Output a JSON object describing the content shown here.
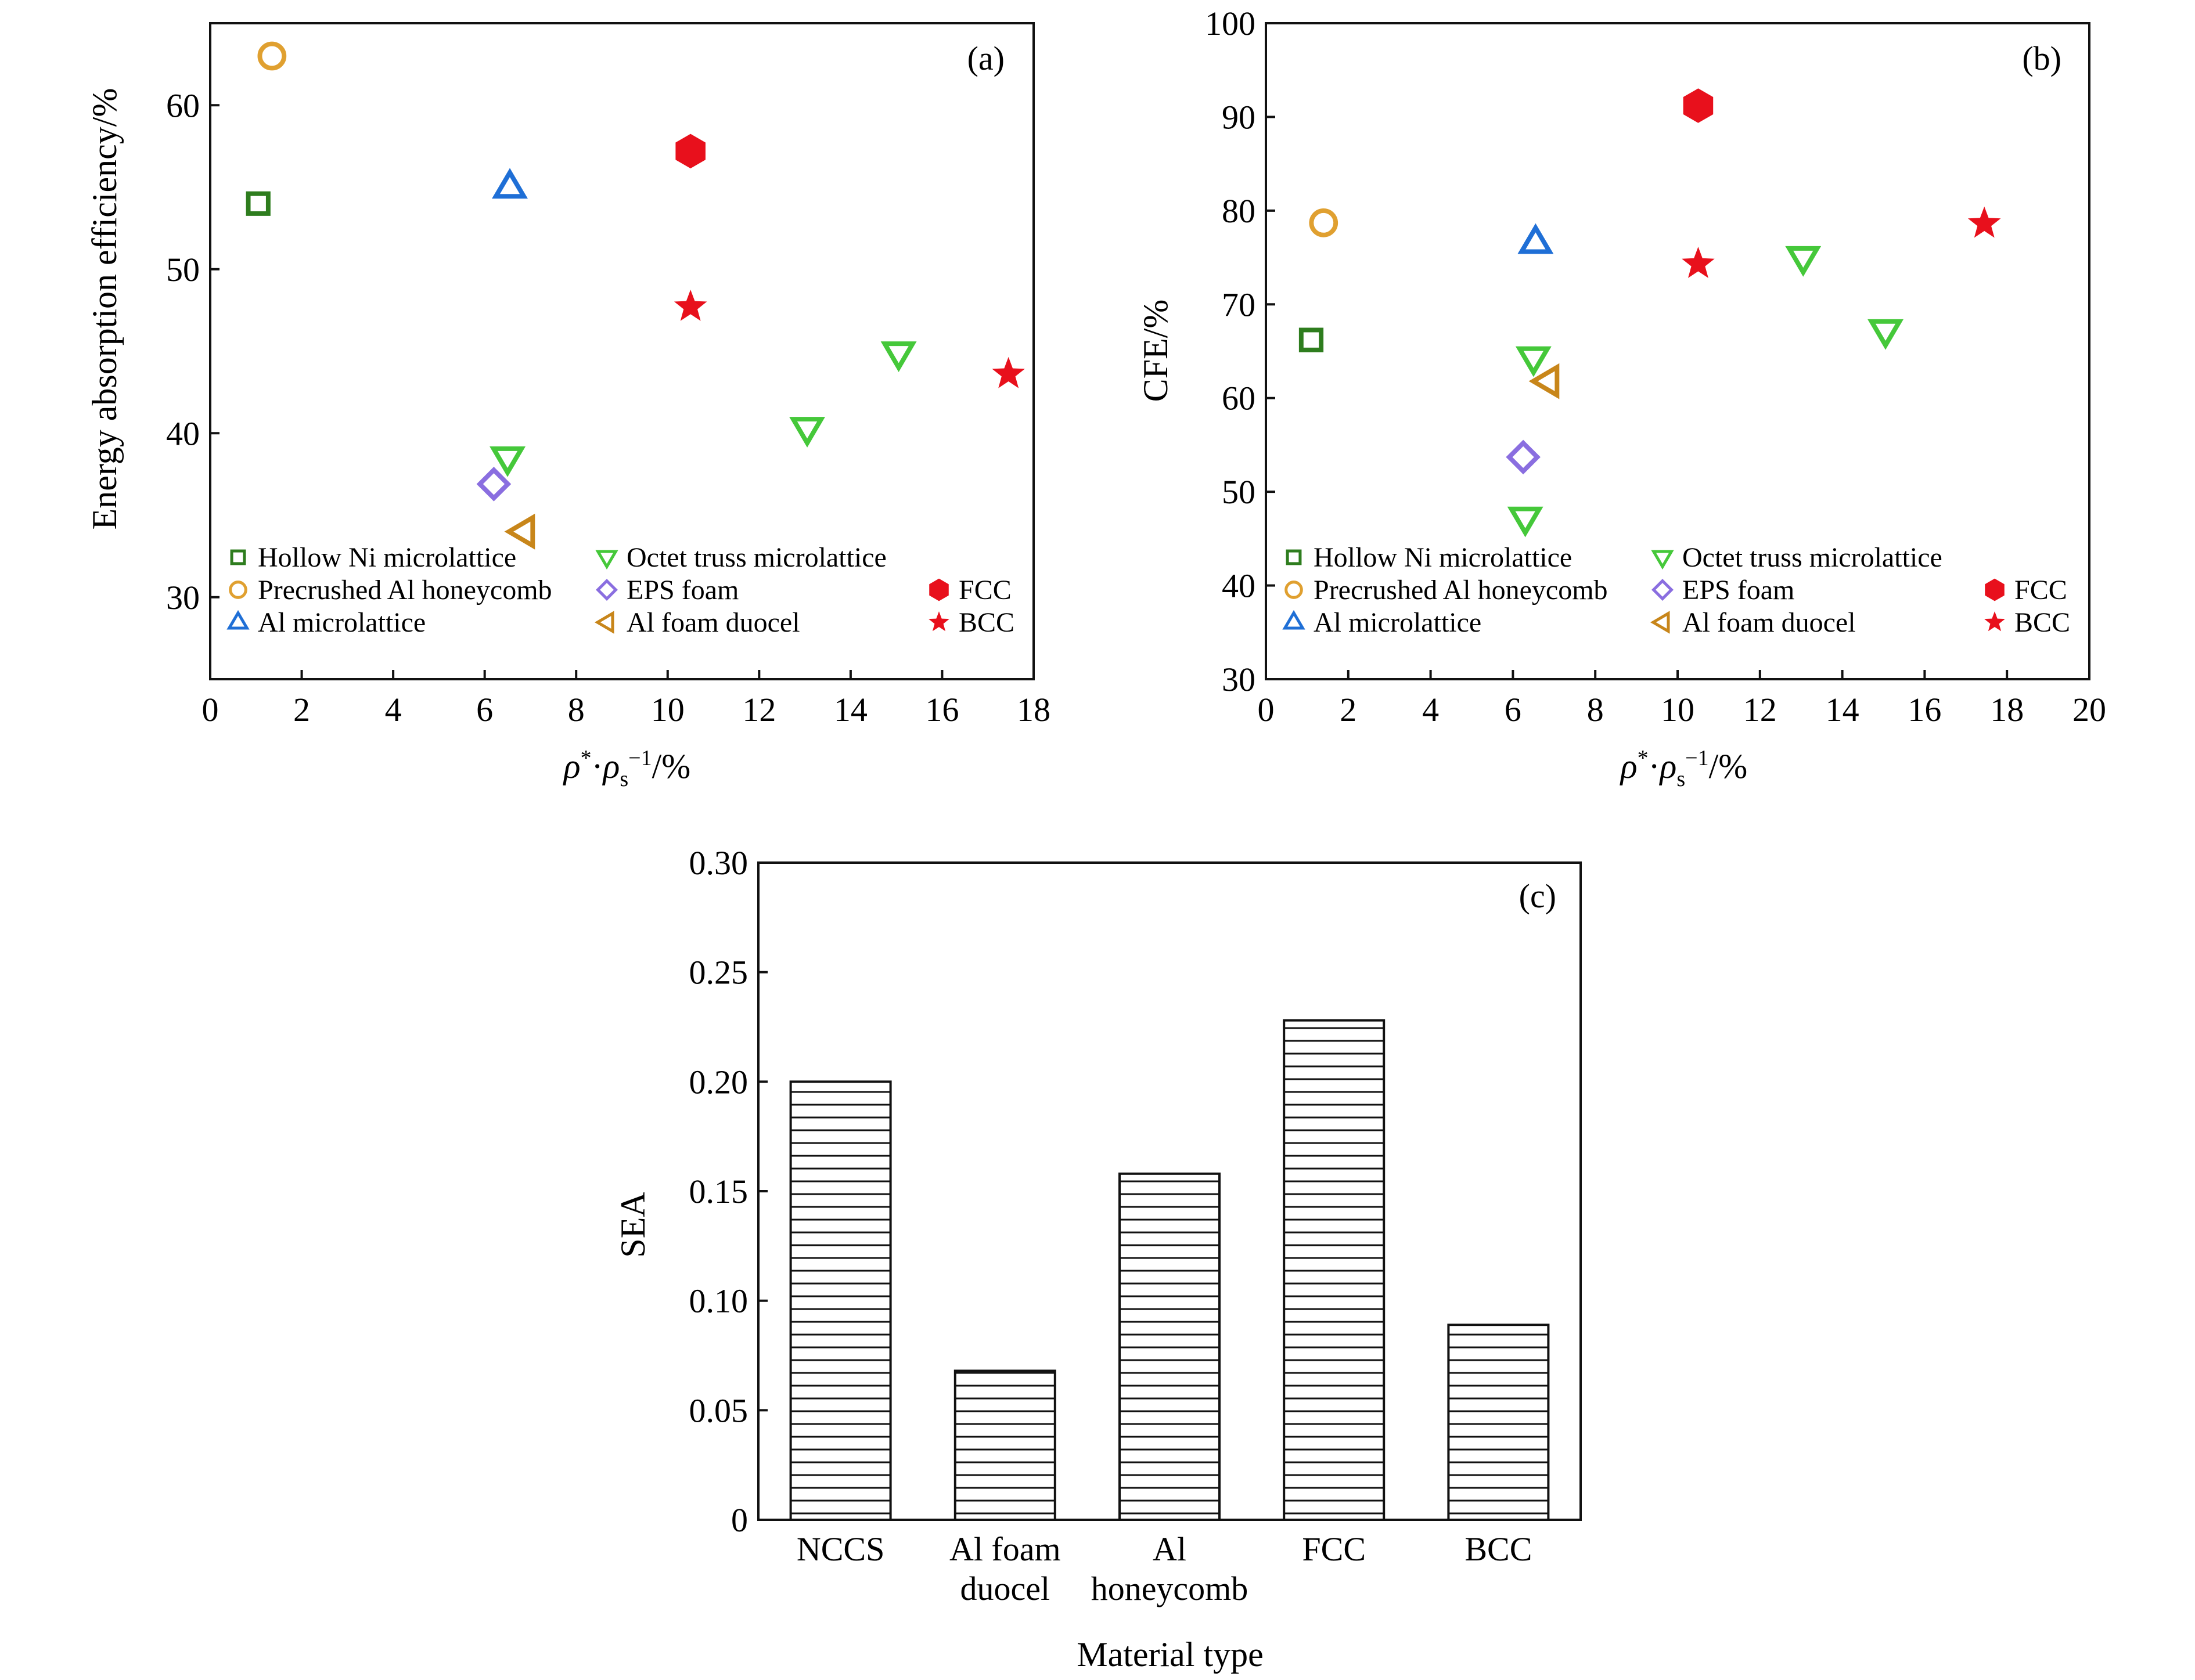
{
  "colors": {
    "hollow_ni": "#2e7d1e",
    "precrushed_al": "#e0a030",
    "al_microlattice": "#1f6fd6",
    "octet": "#45c83a",
    "eps": "#8a6ee0",
    "al_foam": "#c8861a",
    "fcc": "#e8101c",
    "bcc": "#e8101c"
  },
  "chart_data": [
    {
      "panel": "(a)",
      "type": "scatter",
      "xlabel": "ρ*·ρs−1/%",
      "ylabel": "Energy absorption efficiency/%",
      "xlim": [
        0,
        18
      ],
      "ylim": [
        25,
        65
      ],
      "xticks": [
        0,
        2,
        4,
        6,
        8,
        10,
        12,
        14,
        16,
        18
      ],
      "yticks": [
        30,
        40,
        50,
        60
      ],
      "legend": "bottom",
      "series": [
        {
          "name": "Hollow Ni microlattice",
          "marker": "square-open",
          "color_key": "hollow_ni",
          "points": [
            [
              1.05,
              54.0
            ]
          ]
        },
        {
          "name": "Precrushed Al honeycomb",
          "marker": "circle-open",
          "color_key": "precrushed_al",
          "points": [
            [
              1.35,
              63.0
            ]
          ]
        },
        {
          "name": "Al microlattice",
          "marker": "triangle-up-open",
          "color_key": "al_microlattice",
          "points": [
            [
              6.55,
              55.0
            ]
          ]
        },
        {
          "name": "Octet truss microlattice",
          "marker": "triangle-down-open",
          "color_key": "octet",
          "points": [
            [
              6.5,
              38.5
            ],
            [
              13.05,
              40.3
            ],
            [
              15.05,
              44.9
            ]
          ]
        },
        {
          "name": "EPS foam",
          "marker": "diamond-open",
          "color_key": "eps",
          "points": [
            [
              6.2,
              36.9
            ]
          ]
        },
        {
          "name": "Al foam duocel",
          "marker": "triangle-left-open",
          "color_key": "al_foam",
          "points": [
            [
              6.85,
              34.0
            ]
          ]
        },
        {
          "name": "FCC",
          "marker": "hexagon-filled",
          "color_key": "fcc",
          "points": [
            [
              10.5,
              57.2
            ]
          ]
        },
        {
          "name": "BCC",
          "marker": "star-filled",
          "color_key": "bcc",
          "points": [
            [
              10.5,
              47.7
            ],
            [
              17.45,
              43.6
            ]
          ]
        }
      ]
    },
    {
      "panel": "(b)",
      "type": "scatter",
      "xlabel": "ρ*·ρs−1/%",
      "ylabel": "CFE/%",
      "xlim": [
        0,
        20
      ],
      "ylim": [
        30,
        100
      ],
      "xticks": [
        0,
        2,
        4,
        6,
        8,
        10,
        12,
        14,
        16,
        18,
        20
      ],
      "yticks": [
        30,
        40,
        50,
        60,
        70,
        80,
        90,
        100
      ],
      "legend": "bottom",
      "series": [
        {
          "name": "Hollow Ni microlattice",
          "marker": "square-open",
          "color_key": "hollow_ni",
          "points": [
            [
              1.1,
              66.2
            ]
          ]
        },
        {
          "name": "Precrushed Al honeycomb",
          "marker": "circle-open",
          "color_key": "precrushed_al",
          "points": [
            [
              1.4,
              78.7
            ]
          ]
        },
        {
          "name": "Al microlattice",
          "marker": "triangle-up-open",
          "color_key": "al_microlattice",
          "points": [
            [
              6.55,
              76.6
            ]
          ]
        },
        {
          "name": "Octet truss microlattice",
          "marker": "triangle-down-open",
          "color_key": "octet",
          "points": [
            [
              6.3,
              47.2
            ],
            [
              6.5,
              64.3
            ],
            [
              13.05,
              75.0
            ],
            [
              15.05,
              67.2
            ]
          ]
        },
        {
          "name": "EPS foam",
          "marker": "diamond-open",
          "color_key": "eps",
          "points": [
            [
              6.25,
              53.7
            ]
          ]
        },
        {
          "name": "Al foam duocel",
          "marker": "triangle-left-open",
          "color_key": "al_foam",
          "points": [
            [
              6.85,
              61.8
            ]
          ]
        },
        {
          "name": "FCC",
          "marker": "hexagon-filled",
          "color_key": "fcc",
          "points": [
            [
              10.5,
              91.2
            ]
          ]
        },
        {
          "name": "BCC",
          "marker": "star-filled",
          "color_key": "bcc",
          "points": [
            [
              10.5,
              74.3
            ],
            [
              17.45,
              78.6
            ]
          ]
        }
      ]
    },
    {
      "panel": "(c)",
      "type": "bar",
      "xlabel": "Material type",
      "ylabel": "SEA",
      "ylim": [
        0,
        0.3
      ],
      "yticks": [
        "0",
        "0.05",
        "0.10",
        "0.15",
        "0.20",
        "0.25",
        "0.30"
      ],
      "hatch": "horizontal",
      "categories": [
        [
          "NCCS"
        ],
        [
          "Al foam",
          "duocel"
        ],
        [
          "Al",
          "honeycomb"
        ],
        [
          "FCC"
        ],
        [
          "BCC"
        ]
      ],
      "values": [
        0.2,
        0.068,
        0.158,
        0.228,
        0.089
      ]
    }
  ]
}
